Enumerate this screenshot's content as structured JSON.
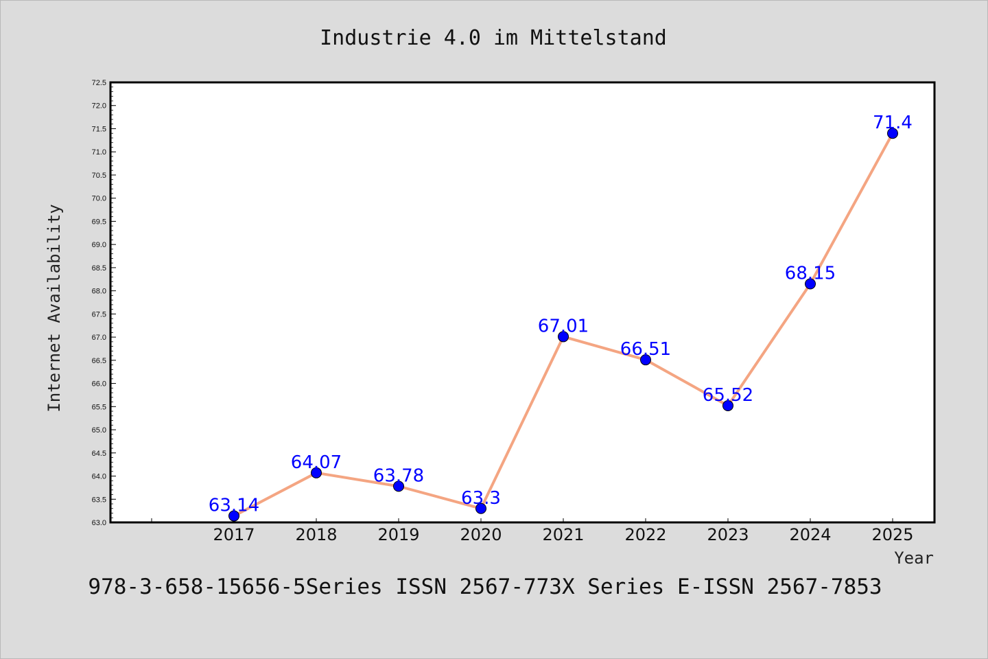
{
  "chart_data": {
    "type": "line",
    "title": "Industrie 4.0 im Mittelstand",
    "xlabel": "Year",
    "ylabel": "Internet Availability",
    "x": [
      "2017",
      "2018",
      "2019",
      "2020",
      "2021",
      "2022",
      "2023",
      "2024",
      "2025"
    ],
    "series": [
      {
        "values": [
          63.14,
          64.07,
          63.78,
          63.3,
          67.01,
          66.51,
          65.52,
          68.15,
          71.4
        ],
        "labels": [
          "63.14",
          "64.07",
          "63.78",
          "63.3",
          "67.01",
          "66.51",
          "65.52",
          "68.15",
          "71.4"
        ]
      }
    ],
    "ylim": [
      63.0,
      72.5
    ],
    "yticks": [
      "63.0",
      "63.5",
      "64.0",
      "64.5",
      "65.0",
      "65.5",
      "66.0",
      "66.5",
      "67.0",
      "67.5",
      "68.0",
      "68.5",
      "69.0",
      "69.5",
      "70.0",
      "70.5",
      "71.0",
      "71.5",
      "72.0",
      "72.5"
    ],
    "grid": false,
    "line_color": "#f4a582",
    "marker_color": "#0000ff",
    "label_color": "#0000ff"
  },
  "footnote": "978-3-658-15656-5Series ISSN 2567-773X Series E-ISSN 2567-7853"
}
